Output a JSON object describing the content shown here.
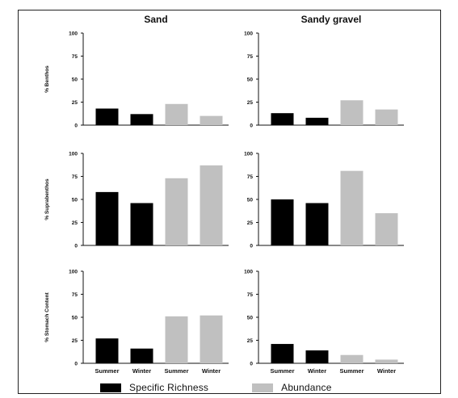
{
  "chart_data": [
    {
      "type": "bar",
      "title": "Sand",
      "ylabel": "% Benthos",
      "xlabel": "",
      "categories": [
        "Summer",
        "Winter",
        "Summer",
        "Winter"
      ],
      "series": [
        {
          "name": "Specific Richness",
          "values": [
            18,
            12,
            null,
            null
          ]
        },
        {
          "name": "Abundance",
          "values": [
            null,
            null,
            23,
            10
          ]
        }
      ],
      "ylim": [
        0,
        100
      ],
      "yticks": [
        "0",
        "25",
        "50",
        "75",
        "100"
      ]
    },
    {
      "type": "bar",
      "title": "Sandy gravel",
      "ylabel": "",
      "xlabel": "",
      "categories": [
        "Summer",
        "Winter",
        "Summer",
        "Winter"
      ],
      "series": [
        {
          "name": "Specific Richness",
          "values": [
            13,
            8,
            null,
            null
          ]
        },
        {
          "name": "Abundance",
          "values": [
            null,
            null,
            27,
            17
          ]
        }
      ],
      "ylim": [
        0,
        100
      ],
      "yticks": [
        "0",
        "25",
        "50",
        "75",
        "100"
      ]
    },
    {
      "type": "bar",
      "title": "",
      "ylabel": "% Suprabenthos",
      "xlabel": "",
      "categories": [
        "Summer",
        "Winter",
        "Summer",
        "Winter"
      ],
      "series": [
        {
          "name": "Specific Richness",
          "values": [
            58,
            46,
            null,
            null
          ]
        },
        {
          "name": "Abundance",
          "values": [
            null,
            null,
            73,
            87
          ]
        }
      ],
      "ylim": [
        0,
        100
      ],
      "yticks": [
        "0",
        "25",
        "50",
        "75",
        "100"
      ]
    },
    {
      "type": "bar",
      "title": "",
      "ylabel": "",
      "xlabel": "",
      "categories": [
        "Summer",
        "Winter",
        "Summer",
        "Winter"
      ],
      "series": [
        {
          "name": "Specific Richness",
          "values": [
            50,
            46,
            null,
            null
          ]
        },
        {
          "name": "Abundance",
          "values": [
            null,
            null,
            81,
            35
          ]
        }
      ],
      "ylim": [
        0,
        100
      ],
      "yticks": [
        "0",
        "25",
        "50",
        "75",
        "100"
      ]
    },
    {
      "type": "bar",
      "title": "",
      "ylabel": "% Stomach Content",
      "xlabel": "",
      "categories": [
        "Summer",
        "Winter",
        "Summer",
        "Winter"
      ],
      "series": [
        {
          "name": "Specific Richness",
          "values": [
            27,
            16,
            null,
            null
          ]
        },
        {
          "name": "Abundance",
          "values": [
            null,
            null,
            51,
            52
          ]
        }
      ],
      "ylim": [
        0,
        100
      ],
      "yticks": [
        "0",
        "25",
        "50",
        "75",
        "100"
      ]
    },
    {
      "type": "bar",
      "title": "",
      "ylabel": "",
      "xlabel": "",
      "categories": [
        "Summer",
        "Winter",
        "Summer",
        "Winter"
      ],
      "series": [
        {
          "name": "Specific Richness",
          "values": [
            21,
            14,
            null,
            null
          ]
        },
        {
          "name": "Abundance",
          "values": [
            null,
            null,
            9,
            4
          ]
        }
      ],
      "ylim": [
        0,
        100
      ],
      "yticks": [
        "0",
        "25",
        "50",
        "75",
        "100"
      ]
    }
  ],
  "legend": {
    "items": [
      {
        "label": "Specific Richness",
        "color": "#000000"
      },
      {
        "label": "Abundance",
        "color": "#c0c0c0"
      }
    ],
    "placement": "bottom"
  },
  "colors": {
    "richness": "#000000",
    "abundance": "#c0c0c0"
  }
}
